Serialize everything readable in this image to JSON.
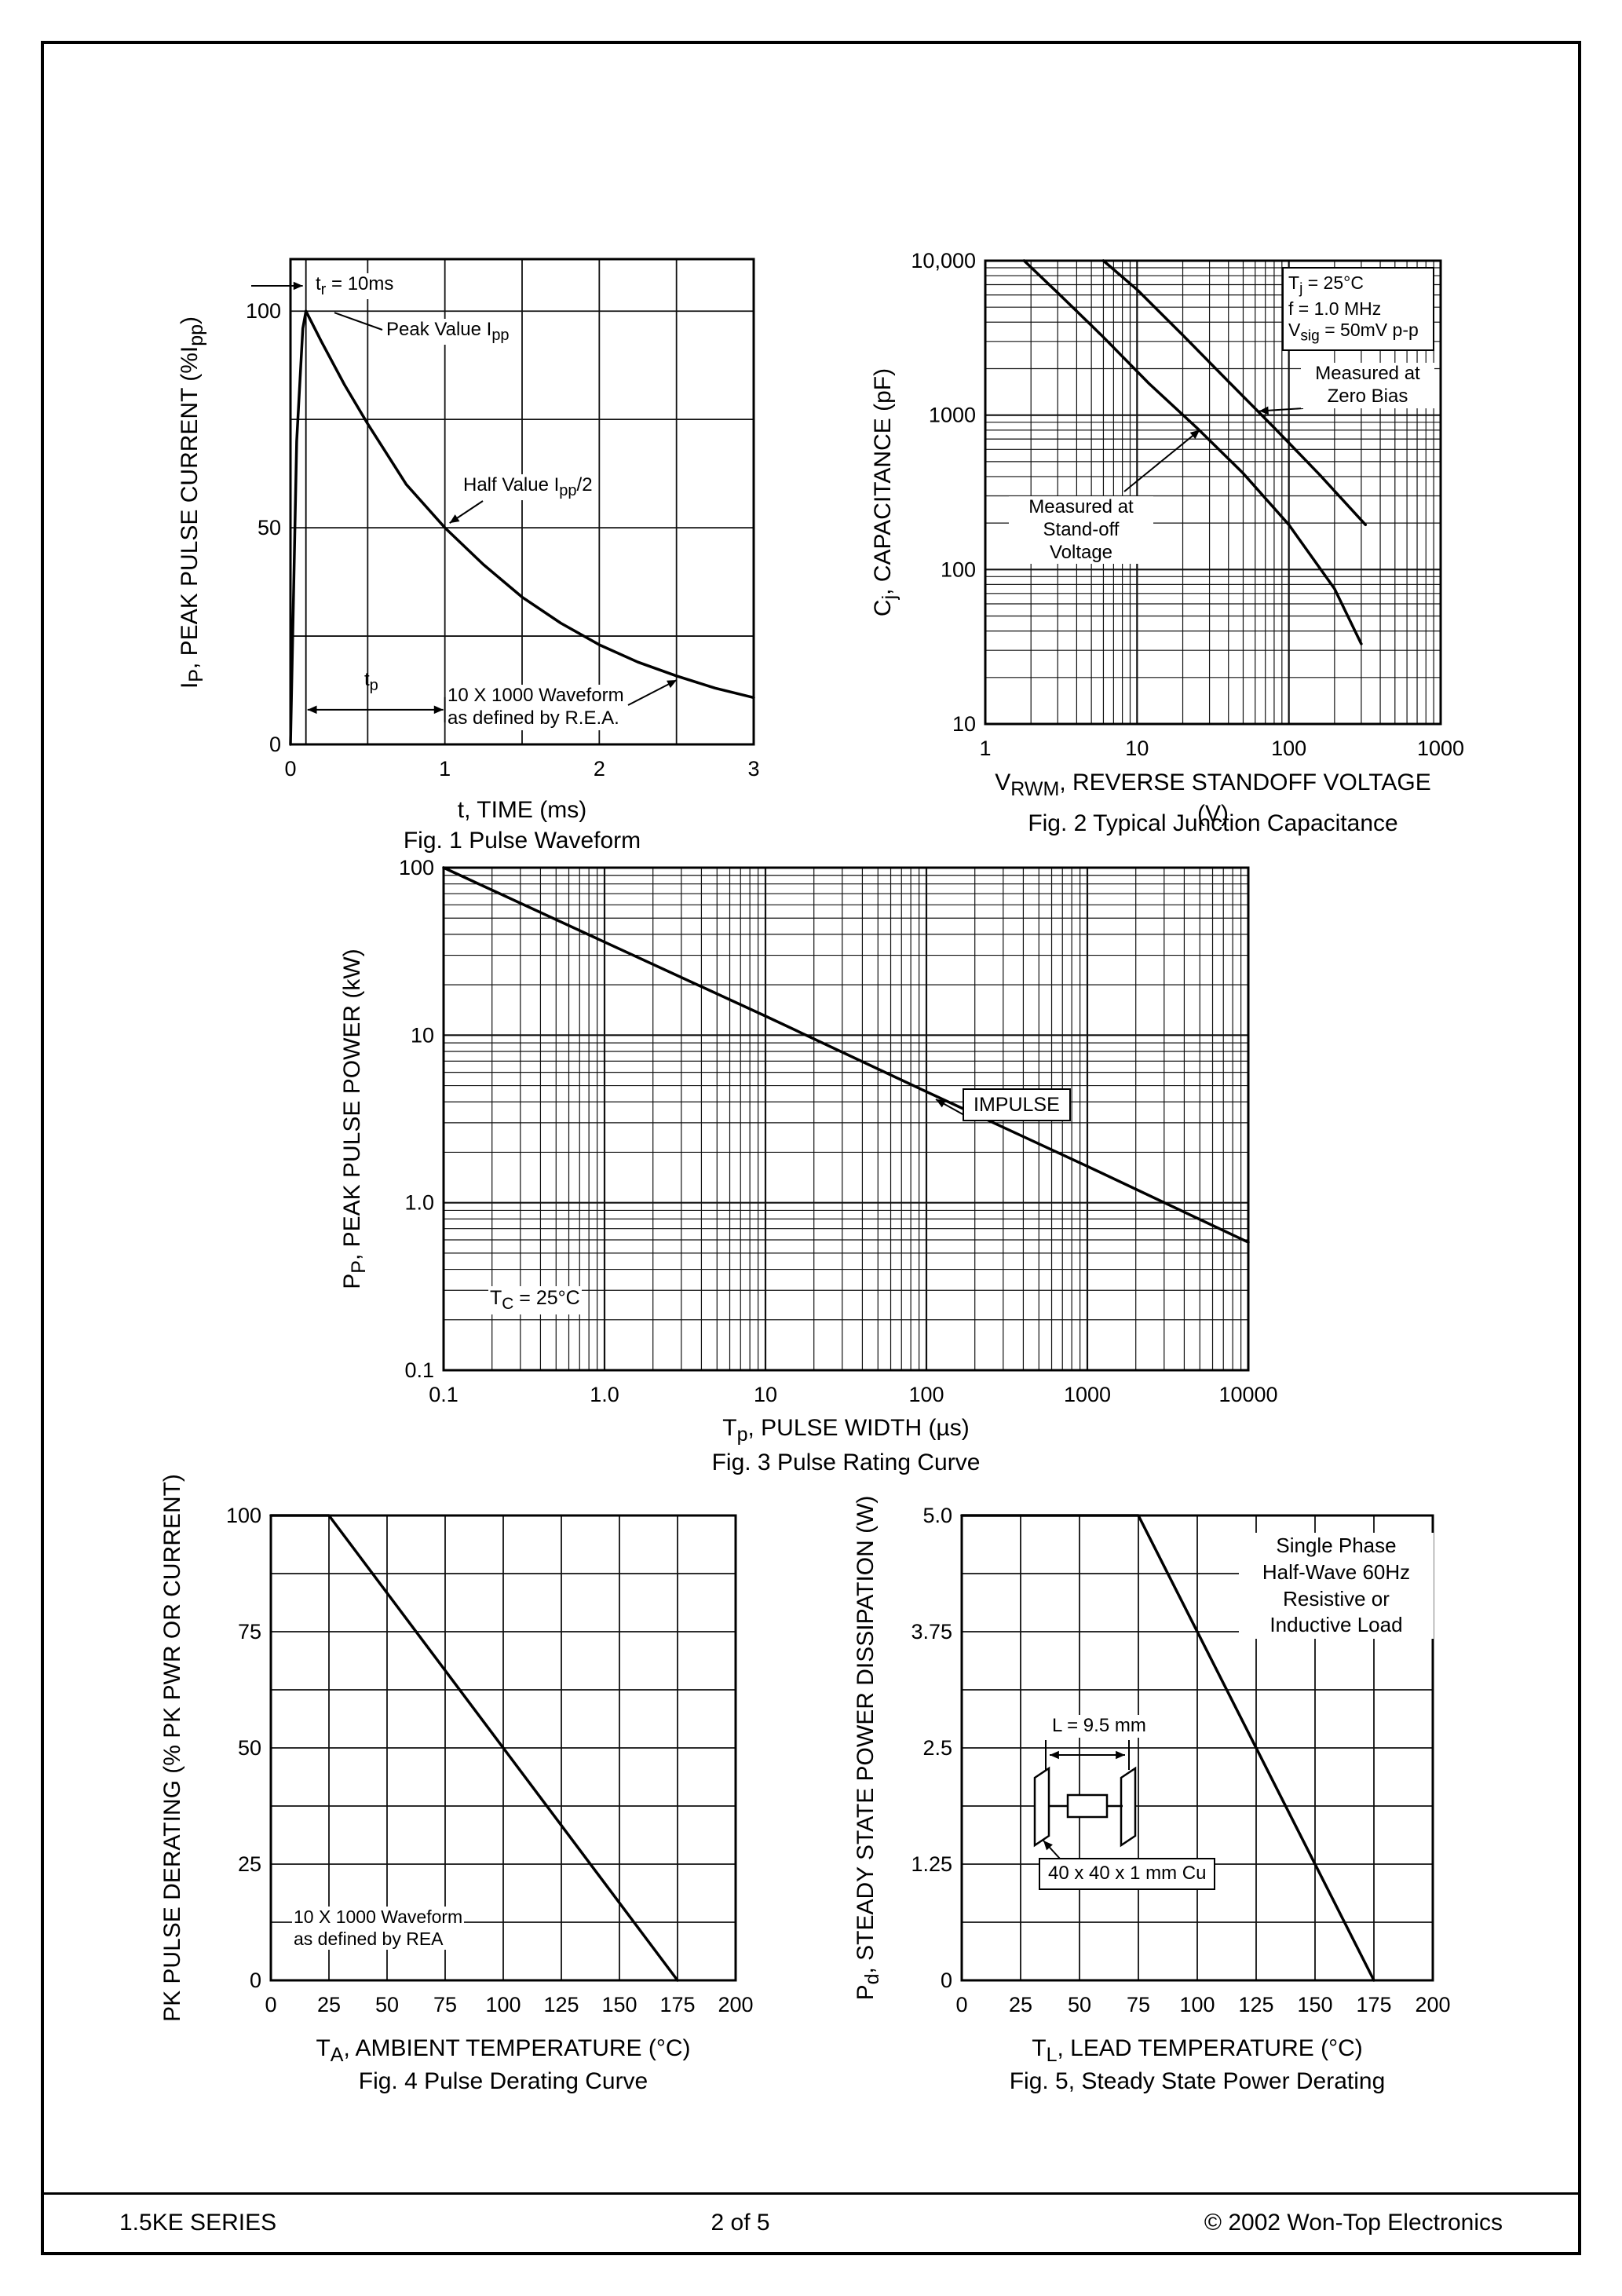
{
  "footer": {
    "left": "1.5KE SERIES",
    "center": "2  of  5",
    "right": "© 2002 Won-Top Electronics"
  },
  "chart_data": [
    {
      "id": "fig1",
      "type": "line",
      "title": "Fig. 1  Pulse Waveform",
      "xlabel_html": "t, TIME (ms)",
      "ylabel_html": "I<sub>P</sub>, PEAK PULSE CURRENT (%I<sub>pp</sub>)",
      "x": {
        "scale": "linear",
        "min": 0,
        "max": 3,
        "grid": [
          0.5,
          1,
          1.5,
          2,
          2.5
        ],
        "ticks": [
          {
            "v": 0,
            "l": "0"
          },
          {
            "v": 1,
            "l": "1"
          },
          {
            "v": 2,
            "l": "2"
          },
          {
            "v": 3,
            "l": "3"
          }
        ]
      },
      "y": {
        "scale": "linear",
        "min": 0,
        "max": 112,
        "grid": [
          25,
          50,
          75,
          100
        ],
        "ticks": [
          {
            "v": 0,
            "l": "0"
          },
          {
            "v": 50,
            "l": "50"
          },
          {
            "v": 100,
            "l": "100"
          }
        ]
      },
      "series": [
        {
          "name": "pulse-current-percent-ipp",
          "points": [
            [
              0,
              0
            ],
            [
              0.04,
              70
            ],
            [
              0.08,
              96
            ],
            [
              0.1,
              100
            ],
            [
              0.2,
              93
            ],
            [
              0.35,
              83
            ],
            [
              0.5,
              74
            ],
            [
              0.75,
              60
            ],
            [
              1.0,
              50
            ],
            [
              1.25,
              41.5
            ],
            [
              1.5,
              34
            ],
            [
              1.75,
              28
            ],
            [
              2.0,
              23
            ],
            [
              2.25,
              19
            ],
            [
              2.5,
              15.8
            ],
            [
              2.75,
              13
            ],
            [
              3.0,
              10.8
            ]
          ]
        }
      ],
      "annotations": {
        "tr": "t<sub>r</sub> = 10ms",
        "peak": "Peak Value I<sub>pp</sub>",
        "half": "Half Value I<sub>pp</sub>/2",
        "tp": "t<sub>p</sub>",
        "wave": "10 X 1000 Waveform<br>as defined by R.E.A."
      }
    },
    {
      "id": "fig2",
      "type": "line",
      "title": "Fig. 2 Typical Junction Capacitance",
      "xlabel_html": "V<sub>RWM</sub>, REVERSE STANDOFF VOLTAGE (V)",
      "ylabel_html": "C<sub>j</sub>, CAPACITANCE (pF)",
      "x": {
        "scale": "log",
        "min": 1,
        "max": 1000,
        "ticks": [
          {
            "v": 1,
            "l": "1"
          },
          {
            "v": 10,
            "l": "10"
          },
          {
            "v": 100,
            "l": "100"
          },
          {
            "v": 1000,
            "l": "1000"
          }
        ]
      },
      "y": {
        "scale": "log",
        "min": 10,
        "max": 10000,
        "ticks": [
          {
            "v": 10,
            "l": "10"
          },
          {
            "v": 100,
            "l": "100"
          },
          {
            "v": 1000,
            "l": "1000"
          },
          {
            "v": 10000,
            "l": "10,000"
          }
        ]
      },
      "series": [
        {
          "name": "measured-at-stand-off-voltage",
          "points": [
            [
              1.8,
              10000
            ],
            [
              3,
              6200
            ],
            [
              6,
              3200
            ],
            [
              12,
              1600
            ],
            [
              25,
              820
            ],
            [
              50,
              420
            ],
            [
              100,
              195
            ],
            [
              200,
              75
            ],
            [
              300,
              33
            ]
          ]
        },
        {
          "name": "measured-at-zero-bias",
          "points": [
            [
              6,
              10000
            ],
            [
              10,
              6500
            ],
            [
              20,
              3300
            ],
            [
              40,
              1650
            ],
            [
              80,
              830
            ],
            [
              160,
              410
            ],
            [
              320,
              195
            ]
          ]
        }
      ],
      "annotations": {
        "cond1": "T<sub>j</sub> = 25°C",
        "cond2": "f = 1.0 MHz",
        "cond3": "V<sub>sig</sub> = 50mV p-p",
        "zero": "Measured at<br>Zero Bias",
        "standoff": "Measured at<br>Stand-off Voltage"
      }
    },
    {
      "id": "fig3",
      "type": "line",
      "title": "Fig. 3 Pulse Rating Curve",
      "xlabel_html": "T<sub>p</sub>, PULSE WIDTH (µs)",
      "ylabel_html": "P<sub>P</sub>, PEAK PULSE POWER (kW)",
      "x": {
        "scale": "log",
        "min": 0.1,
        "max": 10000,
        "ticks": [
          {
            "v": 0.1,
            "l": "0.1"
          },
          {
            "v": 1,
            "l": "1.0"
          },
          {
            "v": 10,
            "l": "10"
          },
          {
            "v": 100,
            "l": "100"
          },
          {
            "v": 1000,
            "l": "1000"
          },
          {
            "v": 10000,
            "l": "10000"
          }
        ]
      },
      "y": {
        "scale": "log",
        "min": 0.1,
        "max": 100,
        "ticks": [
          {
            "v": 0.1,
            "l": "0.1"
          },
          {
            "v": 1,
            "l": "1.0"
          },
          {
            "v": 10,
            "l": "10"
          },
          {
            "v": 100,
            "l": "100"
          }
        ]
      },
      "series": [
        {
          "name": "peak-pulse-power",
          "points": [
            [
              0.1,
              100
            ],
            [
              1,
              36
            ],
            [
              10,
              13
            ],
            [
              100,
              4.6
            ],
            [
              1000,
              1.65
            ],
            [
              10000,
              0.58
            ]
          ]
        }
      ],
      "annotations": {
        "impulse": "IMPULSE",
        "tc": "T<sub>C</sub> = 25°C"
      }
    },
    {
      "id": "fig4",
      "type": "line",
      "title": "Fig. 4  Pulse Derating Curve",
      "xlabel_html": "T<sub>A</sub>, AMBIENT TEMPERATURE (°C)",
      "ylabel_html": "PK PULSE DERATING (% PK PWR OR CURRENT)",
      "x": {
        "scale": "linear",
        "min": 0,
        "max": 200,
        "grid": [
          25,
          50,
          75,
          100,
          125,
          150,
          175
        ],
        "ticks": [
          {
            "v": 0,
            "l": "0"
          },
          {
            "v": 25,
            "l": "25"
          },
          {
            "v": 50,
            "l": "50"
          },
          {
            "v": 75,
            "l": "75"
          },
          {
            "v": 100,
            "l": "100"
          },
          {
            "v": 125,
            "l": "125"
          },
          {
            "v": 150,
            "l": "150"
          },
          {
            "v": 175,
            "l": "175"
          },
          {
            "v": 200,
            "l": "200"
          }
        ]
      },
      "y": {
        "scale": "linear",
        "min": 0,
        "max": 100,
        "grid": [
          12.5,
          25,
          37.5,
          50,
          62.5,
          75,
          87.5
        ],
        "ticks": [
          {
            "v": 0,
            "l": "0"
          },
          {
            "v": 25,
            "l": "25"
          },
          {
            "v": 50,
            "l": "50"
          },
          {
            "v": 75,
            "l": "75"
          },
          {
            "v": 100,
            "l": "100"
          }
        ]
      },
      "series": [
        {
          "name": "pulse-derating",
          "points": [
            [
              0,
              100
            ],
            [
              25,
              100
            ],
            [
              175,
              0
            ]
          ]
        }
      ],
      "annotations": {
        "wave": "10 X 1000 Waveform<br>as defined by REA"
      }
    },
    {
      "id": "fig5",
      "type": "line",
      "title": "Fig. 5, Steady State Power Derating",
      "xlabel_html": "T<sub>L</sub>, LEAD TEMPERATURE (°C)",
      "ylabel_html": "P<sub>d</sub>, STEADY STATE POWER DISSIPATION (W)",
      "x": {
        "scale": "linear",
        "min": 0,
        "max": 200,
        "grid": [
          25,
          50,
          75,
          100,
          125,
          150,
          175
        ],
        "ticks": [
          {
            "v": 0,
            "l": "0"
          },
          {
            "v": 25,
            "l": "25"
          },
          {
            "v": 50,
            "l": "50"
          },
          {
            "v": 75,
            "l": "75"
          },
          {
            "v": 100,
            "l": "100"
          },
          {
            "v": 125,
            "l": "125"
          },
          {
            "v": 150,
            "l": "150"
          },
          {
            "v": 175,
            "l": "175"
          },
          {
            "v": 200,
            "l": "200"
          }
        ]
      },
      "y": {
        "scale": "linear",
        "min": 0,
        "max": 5,
        "grid": [
          0.625,
          1.25,
          1.875,
          2.5,
          3.125,
          3.75,
          4.375
        ],
        "ticks": [
          {
            "v": 0,
            "l": "0"
          },
          {
            "v": 1.25,
            "l": "1.25"
          },
          {
            "v": 2.5,
            "l": "2.5"
          },
          {
            "v": 3.75,
            "l": "3.75"
          },
          {
            "v": 5,
            "l": "5.0"
          }
        ]
      },
      "series": [
        {
          "name": "steady-state-power-derating",
          "points": [
            [
              0,
              5
            ],
            [
              75,
              5
            ],
            [
              175,
              0
            ]
          ]
        }
      ],
      "annotations": {
        "load": "Single Phase<br>Half-Wave 60Hz<br>Resistive or<br>Inductive Load",
        "length": "L = 9.5 mm",
        "cu": "40 x 40 x 1 mm Cu"
      }
    }
  ]
}
